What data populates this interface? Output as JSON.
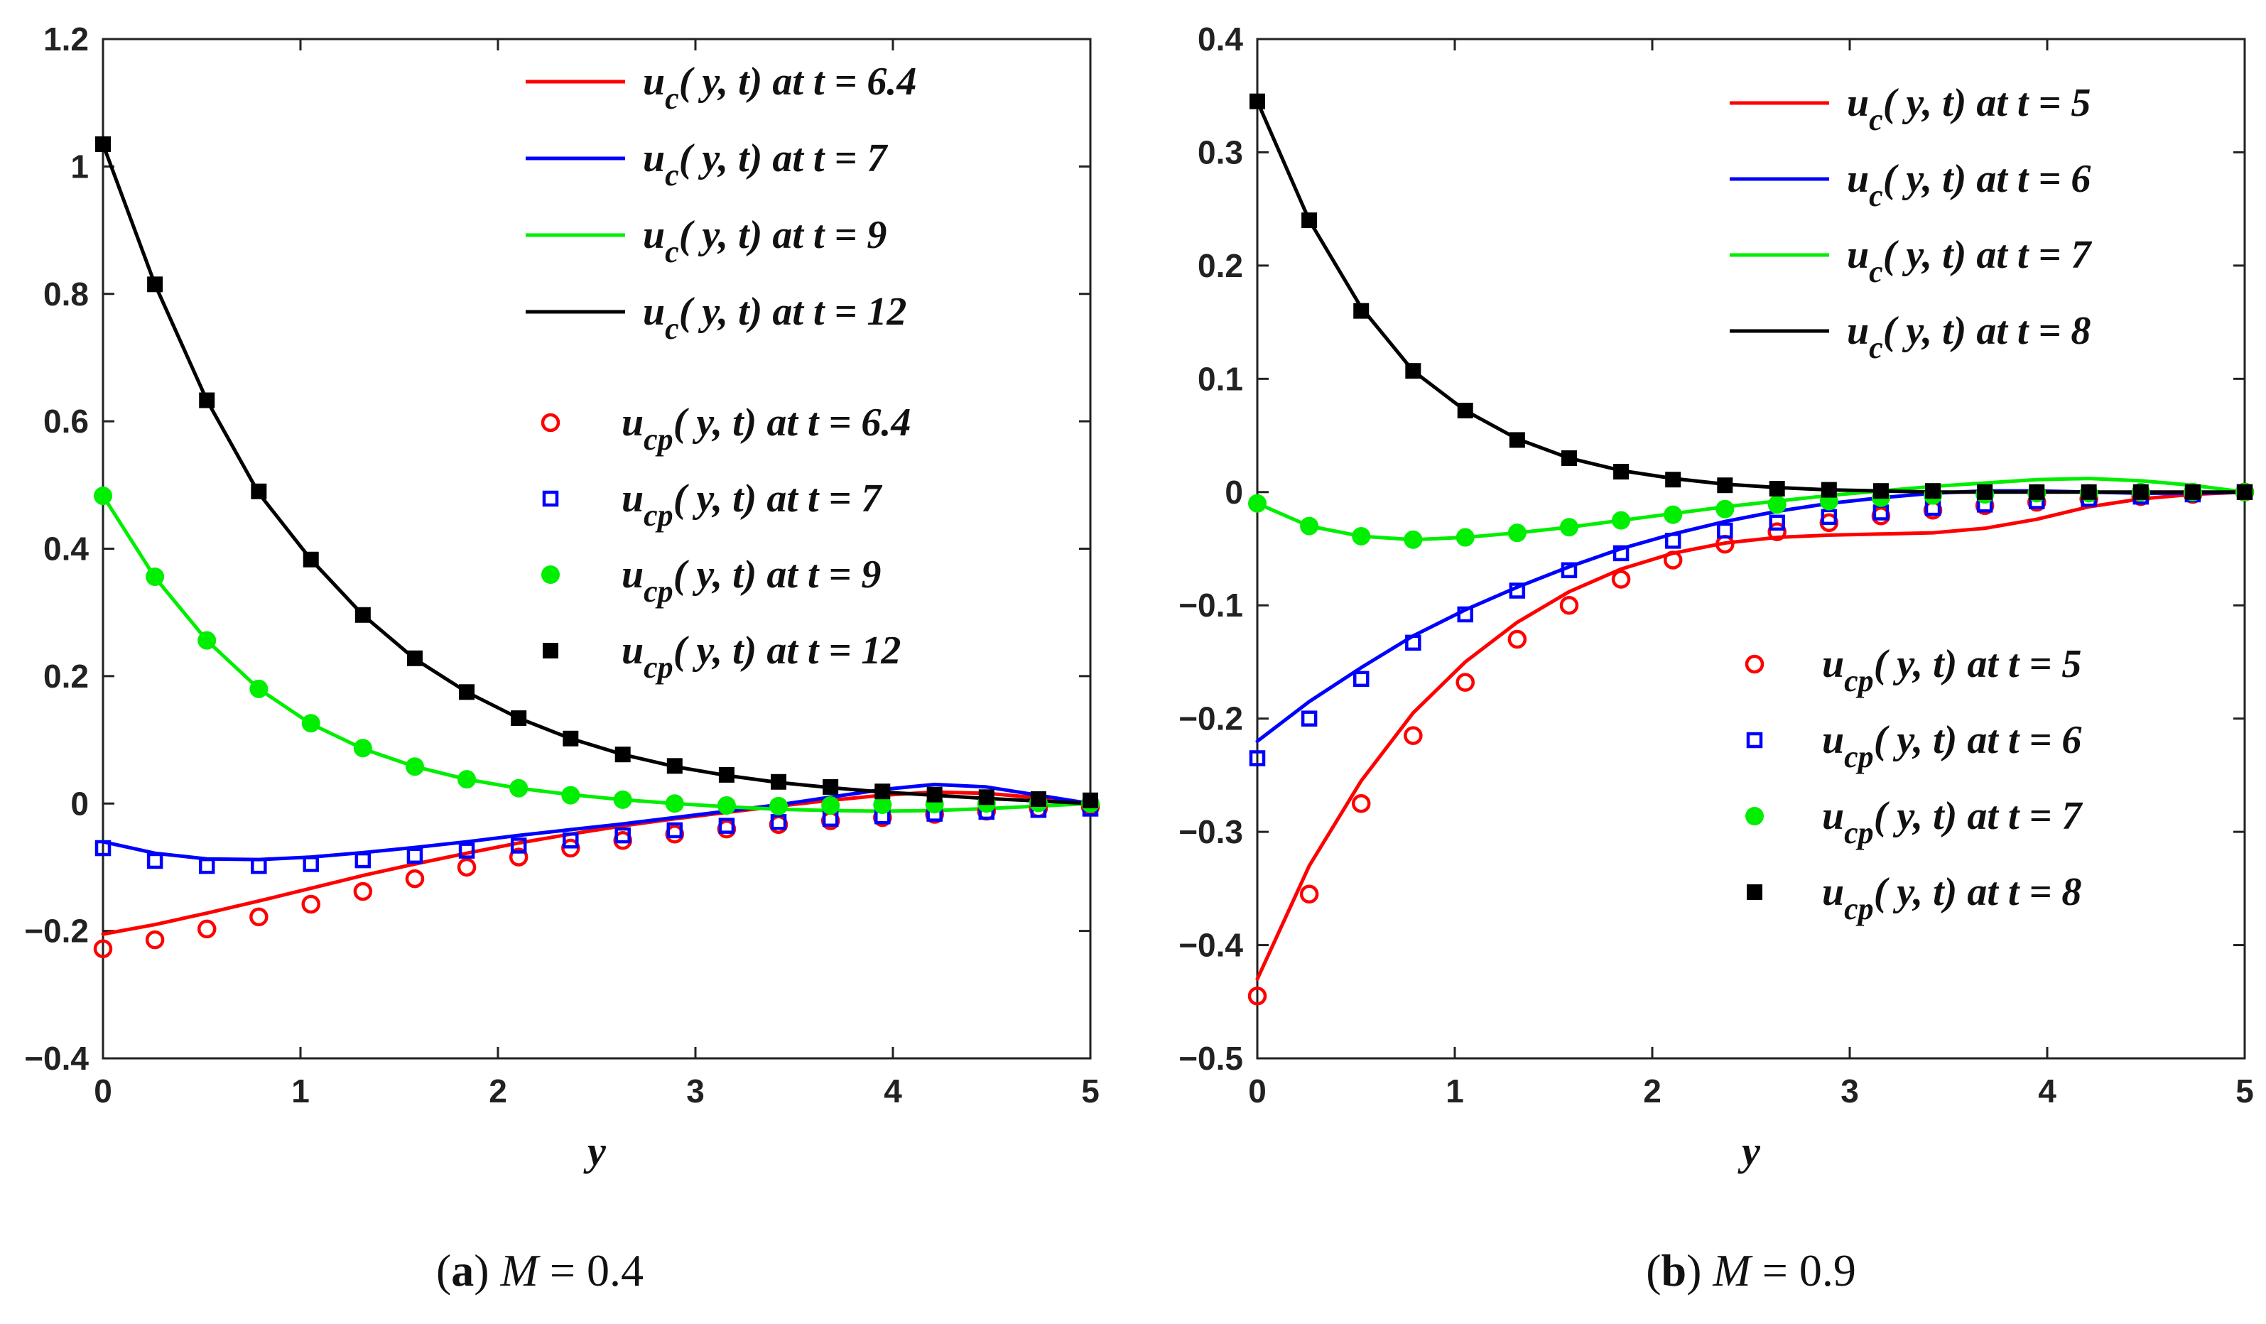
{
  "chart_data": [
    {
      "type": "line",
      "panel": "a",
      "caption_label": "a",
      "caption_param": "M",
      "caption_value": "0.4",
      "xlabel": "y",
      "ylabel": "",
      "xlim": [
        0,
        5
      ],
      "ylim": [
        -0.4,
        1.2
      ],
      "xticks": [
        0,
        1,
        2,
        3,
        4,
        5
      ],
      "yticks": [
        -0.4,
        -0.2,
        0,
        0.2,
        0.4,
        0.6,
        0.8,
        1,
        1.2
      ],
      "legend_position": "top-right",
      "x": [
        0,
        0.263,
        0.526,
        0.789,
        1.053,
        1.316,
        1.579,
        1.842,
        2.105,
        2.368,
        2.632,
        2.895,
        3.158,
        3.421,
        3.684,
        3.947,
        4.211,
        4.474,
        4.737,
        5
      ],
      "series": [
        {
          "name": "u_c(y, t) at t = 6.4",
          "var": "u",
          "sub": "c",
          "t": "6.4",
          "kind": "line",
          "color": "#ff0000",
          "values": [
            -0.205,
            -0.19,
            -0.172,
            -0.153,
            -0.133,
            -0.113,
            -0.095,
            -0.078,
            -0.062,
            -0.048,
            -0.035,
            -0.024,
            -0.014,
            -0.004,
            0.005,
            0.013,
            0.018,
            0.016,
            0.009,
            0.0
          ]
        },
        {
          "name": "u_c(y, t) at t = 7",
          "var": "u",
          "sub": "c",
          "t": "7",
          "kind": "line",
          "color": "#0000ff",
          "values": [
            -0.06,
            -0.078,
            -0.087,
            -0.088,
            -0.084,
            -0.077,
            -0.069,
            -0.06,
            -0.05,
            -0.041,
            -0.032,
            -0.022,
            -0.012,
            -0.002,
            0.01,
            0.022,
            0.03,
            0.026,
            0.013,
            0.0
          ]
        },
        {
          "name": "u_c(y, t) at t = 9",
          "var": "u",
          "sub": "c",
          "t": "9",
          "kind": "line",
          "color": "#00ee00",
          "values": [
            0.483,
            0.355,
            0.256,
            0.18,
            0.125,
            0.086,
            0.058,
            0.038,
            0.024,
            0.014,
            0.006,
            0.0,
            -0.005,
            -0.009,
            -0.011,
            -0.012,
            -0.011,
            -0.008,
            -0.004,
            0.0
          ]
        },
        {
          "name": "u_c(y, t) at t = 12",
          "var": "u",
          "sub": "c",
          "t": "12",
          "kind": "line",
          "color": "#000000",
          "values": [
            1.035,
            0.815,
            0.633,
            0.487,
            0.383,
            0.296,
            0.227,
            0.175,
            0.134,
            0.102,
            0.077,
            0.058,
            0.044,
            0.033,
            0.025,
            0.018,
            0.013,
            0.008,
            0.004,
            0.0
          ]
        },
        {
          "name": "u_cp(y, t) at t = 6.4",
          "var": "u",
          "sub": "cp",
          "t": "6.4",
          "kind": "marker",
          "marker": "open-circle",
          "color": "#ff0000",
          "values": [
            -0.228,
            -0.214,
            -0.197,
            -0.178,
            -0.158,
            -0.138,
            -0.118,
            -0.1,
            -0.084,
            -0.07,
            -0.058,
            -0.048,
            -0.04,
            -0.033,
            -0.027,
            -0.022,
            -0.017,
            -0.012,
            -0.008,
            -0.005
          ]
        },
        {
          "name": "u_cp(y, t) at t = 7",
          "var": "u",
          "sub": "cp",
          "t": "7",
          "kind": "marker",
          "marker": "open-square",
          "color": "#0000ff",
          "values": [
            -0.07,
            -0.09,
            -0.098,
            -0.098,
            -0.095,
            -0.089,
            -0.082,
            -0.074,
            -0.066,
            -0.058,
            -0.05,
            -0.042,
            -0.035,
            -0.029,
            -0.024,
            -0.02,
            -0.016,
            -0.013,
            -0.01,
            -0.008
          ]
        },
        {
          "name": "u_cp(y, t) at t = 9",
          "var": "u",
          "sub": "cp",
          "t": "9",
          "kind": "marker",
          "marker": "filled-circle",
          "color": "#00ee00",
          "values": [
            0.483,
            0.356,
            0.256,
            0.18,
            0.126,
            0.087,
            0.058,
            0.038,
            0.024,
            0.013,
            0.006,
            0.0,
            -0.003,
            -0.004,
            -0.003,
            -0.002,
            -0.001,
            0.0,
            0.001,
            0.0
          ]
        },
        {
          "name": "u_cp(y, t) at t = 12",
          "var": "u",
          "sub": "cp",
          "t": "12",
          "kind": "marker",
          "marker": "filled-square",
          "color": "#000000",
          "values": [
            1.035,
            0.815,
            0.633,
            0.49,
            0.383,
            0.296,
            0.228,
            0.175,
            0.134,
            0.102,
            0.077,
            0.059,
            0.045,
            0.034,
            0.026,
            0.019,
            0.014,
            0.01,
            0.007,
            0.005
          ]
        }
      ]
    },
    {
      "type": "line",
      "panel": "b",
      "caption_label": "b",
      "caption_param": "M",
      "caption_value": "0.9",
      "xlabel": "y",
      "ylabel": "",
      "xlim": [
        0,
        5
      ],
      "ylim": [
        -0.5,
        0.4
      ],
      "xticks": [
        0,
        1,
        2,
        3,
        4,
        5
      ],
      "yticks": [
        -0.5,
        -0.4,
        -0.3,
        -0.2,
        -0.1,
        0,
        0.1,
        0.2,
        0.3,
        0.4
      ],
      "legend_position": "top-right and lower-right",
      "x": [
        0,
        0.263,
        0.526,
        0.789,
        1.053,
        1.316,
        1.579,
        1.842,
        2.105,
        2.368,
        2.632,
        2.895,
        3.158,
        3.421,
        3.684,
        3.947,
        4.211,
        4.474,
        4.737,
        5
      ],
      "series": [
        {
          "name": "u_c(y, t) at t = 5",
          "var": "u",
          "sub": "c",
          "t": "5",
          "kind": "line",
          "color": "#ff0000",
          "values": [
            -0.43,
            -0.33,
            -0.255,
            -0.195,
            -0.15,
            -0.115,
            -0.088,
            -0.068,
            -0.054,
            -0.045,
            -0.04,
            -0.038,
            -0.037,
            -0.036,
            -0.032,
            -0.024,
            -0.013,
            -0.006,
            -0.002,
            0.0
          ]
        },
        {
          "name": "u_c(y, t) at t = 6",
          "var": "u",
          "sub": "c",
          "t": "6",
          "kind": "line",
          "color": "#0000ff",
          "values": [
            -0.22,
            -0.185,
            -0.155,
            -0.127,
            -0.104,
            -0.084,
            -0.066,
            -0.05,
            -0.037,
            -0.026,
            -0.017,
            -0.01,
            -0.005,
            -0.001,
            0.001,
            0.001,
            0.0,
            -0.001,
            -0.001,
            0.0
          ]
        },
        {
          "name": "u_c(y, t) at t = 7",
          "var": "u",
          "sub": "c",
          "t": "7",
          "kind": "line",
          "color": "#00ee00",
          "values": [
            -0.01,
            -0.03,
            -0.039,
            -0.042,
            -0.04,
            -0.036,
            -0.031,
            -0.025,
            -0.019,
            -0.013,
            -0.008,
            -0.003,
            0.001,
            0.005,
            0.008,
            0.011,
            0.012,
            0.01,
            0.006,
            0.0
          ]
        },
        {
          "name": "u_c(y, t) at t = 8",
          "var": "u",
          "sub": "c",
          "t": "8",
          "kind": "line",
          "color": "#000000",
          "values": [
            0.345,
            0.24,
            0.163,
            0.107,
            0.072,
            0.047,
            0.03,
            0.019,
            0.012,
            0.007,
            0.004,
            0.002,
            0.001,
            0.0,
            0.0,
            0.0,
            0.0,
            0.0,
            0.0,
            0.0
          ]
        },
        {
          "name": "u_cp(y, t) at t = 5",
          "var": "u",
          "sub": "cp",
          "t": "5",
          "kind": "marker",
          "marker": "open-circle",
          "color": "#ff0000",
          "values": [
            -0.445,
            -0.355,
            -0.275,
            -0.215,
            -0.168,
            -0.13,
            -0.1,
            -0.077,
            -0.06,
            -0.046,
            -0.035,
            -0.027,
            -0.021,
            -0.016,
            -0.012,
            -0.009,
            -0.006,
            -0.004,
            -0.002,
            0.0
          ]
        },
        {
          "name": "u_cp(y, t) at t = 6",
          "var": "u",
          "sub": "cp",
          "t": "6",
          "kind": "marker",
          "marker": "open-square",
          "color": "#0000ff",
          "values": [
            -0.235,
            -0.2,
            -0.165,
            -0.133,
            -0.108,
            -0.087,
            -0.069,
            -0.054,
            -0.043,
            -0.034,
            -0.027,
            -0.022,
            -0.018,
            -0.014,
            -0.011,
            -0.008,
            -0.006,
            -0.004,
            -0.002,
            0.0
          ]
        },
        {
          "name": "u_cp(y, t) at t = 7",
          "var": "u",
          "sub": "cp",
          "t": "7",
          "kind": "marker",
          "marker": "filled-circle",
          "color": "#00ee00",
          "values": [
            -0.01,
            -0.03,
            -0.039,
            -0.042,
            -0.04,
            -0.036,
            -0.031,
            -0.025,
            -0.02,
            -0.015,
            -0.011,
            -0.008,
            -0.005,
            -0.003,
            -0.002,
            -0.001,
            -0.001,
            0.0,
            0.0,
            0.0
          ]
        },
        {
          "name": "u_cp(y, t) at t = 8",
          "var": "u",
          "sub": "cp",
          "t": "8",
          "kind": "marker",
          "marker": "filled-square",
          "color": "#000000",
          "values": [
            0.345,
            0.24,
            0.16,
            0.107,
            0.072,
            0.046,
            0.03,
            0.018,
            0.011,
            0.006,
            0.003,
            0.002,
            0.001,
            0.001,
            0.0,
            0.0,
            0.0,
            0.0,
            0.0,
            0.0
          ]
        }
      ]
    }
  ],
  "legend_word": "at"
}
